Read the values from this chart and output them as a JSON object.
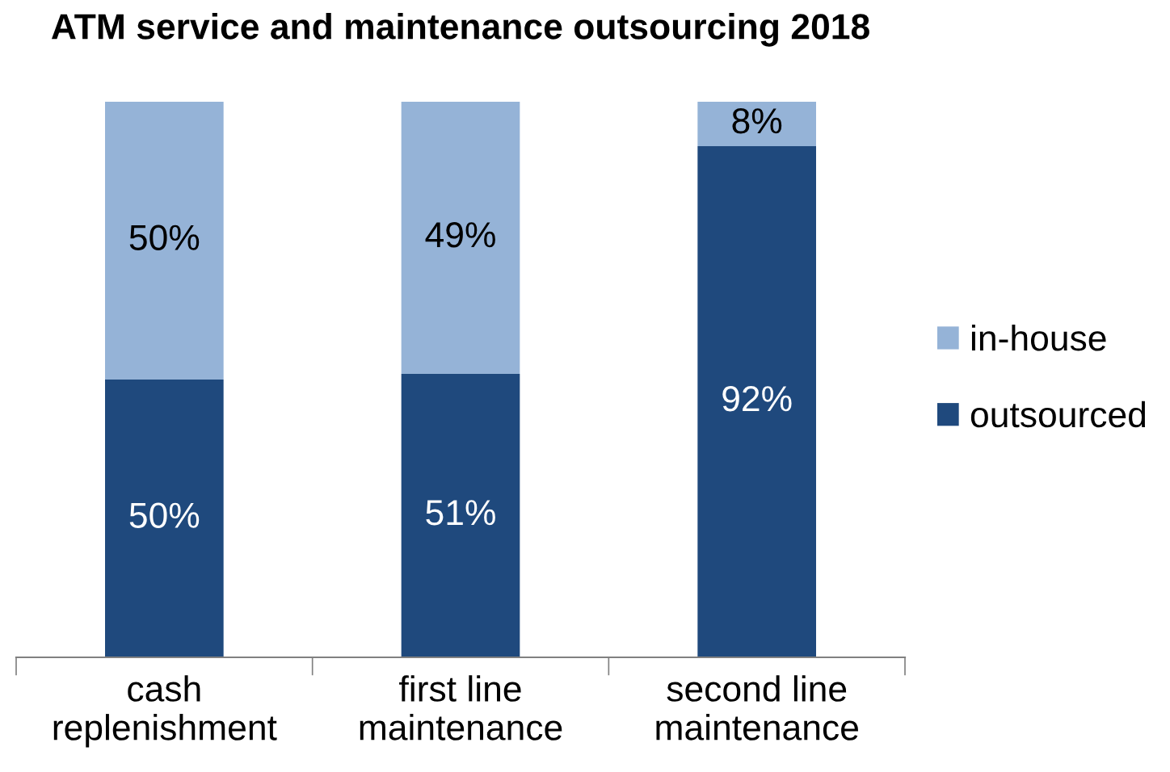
{
  "chart_data": {
    "type": "bar",
    "title": "ATM service and maintenance outsourcing 2018",
    "categories": [
      "cash\nreplenishment",
      "first line\nmaintenance",
      "second line\nmaintenance"
    ],
    "stacked": true,
    "legend": "right",
    "series": [
      {
        "name": "outsourced",
        "color": "#1f497d",
        "values": [
          50,
          51,
          92
        ],
        "value_labels": [
          "50%",
          "51%",
          "92%"
        ]
      },
      {
        "name": "in-house",
        "color": "#95b3d7",
        "values": [
          50,
          49,
          8
        ],
        "value_labels": [
          "50%",
          "49%",
          "8%"
        ]
      }
    ]
  }
}
